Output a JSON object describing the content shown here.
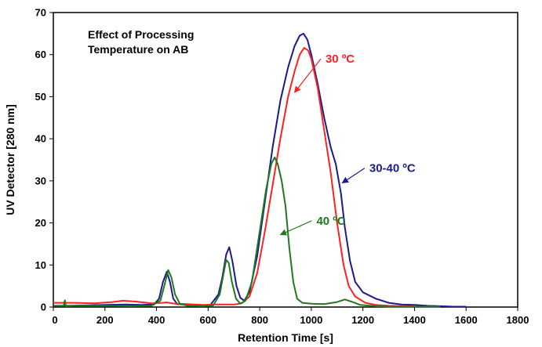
{
  "chart_data": {
    "type": "line",
    "title": "",
    "annotation_box": [
      "Effect of Processing",
      "Temperature on AB"
    ],
    "xlabel": "Retention Time [s]",
    "ylabel": "UV Detector [280 nm]",
    "xlim": [
      0,
      1800
    ],
    "ylim": [
      0,
      70
    ],
    "xticks": [
      0,
      200,
      400,
      600,
      800,
      1000,
      1200,
      1400,
      1600,
      1800
    ],
    "yticks": [
      0,
      10,
      20,
      30,
      40,
      50,
      60,
      70
    ],
    "grid": false,
    "legend": "none",
    "series": [
      {
        "color": "#1a1a8c",
        "label": "30-40 ºC",
        "label_at": [
          1225,
          33
        ],
        "arrow_to": [
          1120,
          29.5
        ],
        "points": [
          [
            0,
            0.3
          ],
          [
            60,
            0.3
          ],
          [
            120,
            0.4
          ],
          [
            200,
            0.5
          ],
          [
            280,
            0.6
          ],
          [
            340,
            0.5
          ],
          [
            390,
            0.6
          ],
          [
            410,
            2
          ],
          [
            425,
            6
          ],
          [
            440,
            8.4
          ],
          [
            452,
            6
          ],
          [
            465,
            2
          ],
          [
            480,
            0.7
          ],
          [
            530,
            0.5
          ],
          [
            580,
            0.3
          ],
          [
            610,
            0.6
          ],
          [
            640,
            3
          ],
          [
            655,
            7
          ],
          [
            670,
            12.5
          ],
          [
            682,
            14.2
          ],
          [
            694,
            11
          ],
          [
            710,
            5
          ],
          [
            725,
            2.2
          ],
          [
            740,
            1.5
          ],
          [
            760,
            3.5
          ],
          [
            790,
            12
          ],
          [
            820,
            25
          ],
          [
            850,
            38
          ],
          [
            880,
            49
          ],
          [
            910,
            57
          ],
          [
            935,
            62
          ],
          [
            955,
            64.5
          ],
          [
            970,
            65
          ],
          [
            985,
            63.5
          ],
          [
            1000,
            60
          ],
          [
            1025,
            53
          ],
          [
            1050,
            45
          ],
          [
            1075,
            38
          ],
          [
            1095,
            34
          ],
          [
            1115,
            27
          ],
          [
            1130,
            19
          ],
          [
            1150,
            11
          ],
          [
            1170,
            6
          ],
          [
            1200,
            3.5
          ],
          [
            1250,
            2
          ],
          [
            1300,
            1
          ],
          [
            1350,
            0.6
          ],
          [
            1400,
            0.5
          ],
          [
            1450,
            0.3
          ],
          [
            1500,
            0.2
          ],
          [
            1550,
            0.1
          ],
          [
            1600,
            0.1
          ]
        ]
      },
      {
        "color": "#ff2020",
        "label": "30 ºC",
        "label_at": [
          1055,
          59
        ],
        "arrow_to": [
          935,
          51
        ],
        "points": [
          [
            0,
            1
          ],
          [
            80,
            1
          ],
          [
            160,
            0.9
          ],
          [
            230,
            1.2
          ],
          [
            270,
            1.5
          ],
          [
            320,
            1.3
          ],
          [
            380,
            0.9
          ],
          [
            420,
            1
          ],
          [
            440,
            1.1
          ],
          [
            470,
            0.8
          ],
          [
            520,
            0.7
          ],
          [
            580,
            0.5
          ],
          [
            630,
            0.6
          ],
          [
            670,
            0.6
          ],
          [
            700,
            0.6
          ],
          [
            730,
            0.9
          ],
          [
            760,
            2.5
          ],
          [
            790,
            8
          ],
          [
            820,
            18
          ],
          [
            850,
            29
          ],
          [
            880,
            40
          ],
          [
            910,
            50
          ],
          [
            935,
            56
          ],
          [
            955,
            60
          ],
          [
            972,
            61.6
          ],
          [
            988,
            61
          ],
          [
            1000,
            59
          ],
          [
            1025,
            52
          ],
          [
            1050,
            42
          ],
          [
            1075,
            32
          ],
          [
            1100,
            20
          ],
          [
            1125,
            10
          ],
          [
            1145,
            5
          ],
          [
            1170,
            2.5
          ],
          [
            1210,
            1
          ],
          [
            1250,
            0.5
          ],
          [
            1300,
            0.3
          ],
          [
            1350,
            0.2
          ],
          [
            1400,
            0.2
          ]
        ]
      },
      {
        "color": "#1f7a1f",
        "label": "40 ºC",
        "label_at": [
          1020,
          20.5
        ],
        "arrow_to": [
          880,
          17.2
        ],
        "points": [
          [
            0,
            0.3
          ],
          [
            40,
            0.3
          ],
          [
            45,
            1.6
          ],
          [
            48,
            0.2
          ],
          [
            100,
            0.3
          ],
          [
            200,
            0.3
          ],
          [
            300,
            0.2
          ],
          [
            380,
            0.3
          ],
          [
            415,
            1.5
          ],
          [
            430,
            5
          ],
          [
            445,
            8.8
          ],
          [
            458,
            7
          ],
          [
            472,
            3
          ],
          [
            490,
            0.8
          ],
          [
            520,
            0.3
          ],
          [
            580,
            0.2
          ],
          [
            620,
            0.4
          ],
          [
            645,
            3
          ],
          [
            660,
            8
          ],
          [
            670,
            11.2
          ],
          [
            680,
            10.5
          ],
          [
            692,
            6
          ],
          [
            708,
            2
          ],
          [
            725,
            0.8
          ],
          [
            745,
            1.5
          ],
          [
            770,
            6
          ],
          [
            800,
            18
          ],
          [
            825,
            28
          ],
          [
            845,
            34
          ],
          [
            858,
            35.6
          ],
          [
            870,
            34
          ],
          [
            885,
            30
          ],
          [
            900,
            24
          ],
          [
            915,
            14
          ],
          [
            930,
            6
          ],
          [
            945,
            2
          ],
          [
            965,
            1
          ],
          [
            1000,
            0.8
          ],
          [
            1050,
            0.7
          ],
          [
            1100,
            1.2
          ],
          [
            1130,
            1.8
          ],
          [
            1160,
            1.2
          ],
          [
            1190,
            0.5
          ],
          [
            1250,
            0.2
          ],
          [
            1300,
            0.1
          ],
          [
            1400,
            0.1
          ],
          [
            1500,
            0.1
          ]
        ]
      }
    ]
  }
}
